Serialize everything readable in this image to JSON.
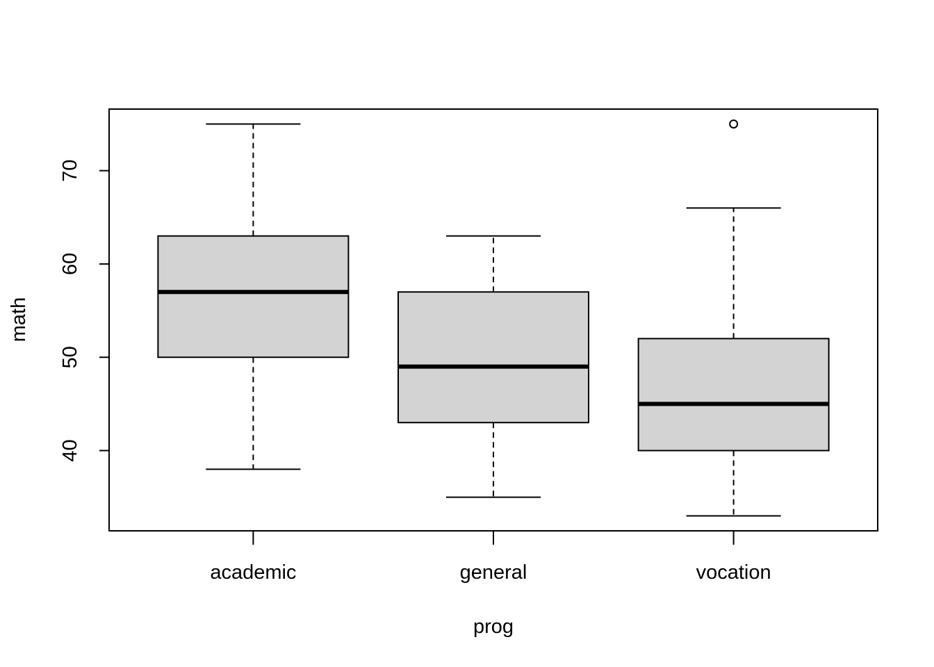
{
  "chart_data": {
    "type": "boxplot",
    "title": "",
    "xlabel": "prog",
    "ylabel": "math",
    "categories": [
      "academic",
      "general",
      "vocation"
    ],
    "boxes": [
      {
        "category": "academic",
        "whisker_low": 38,
        "q1": 50,
        "median": 57,
        "q3": 63,
        "whisker_high": 75,
        "outliers": []
      },
      {
        "category": "general",
        "whisker_low": 35,
        "q1": 43,
        "median": 49,
        "q3": 57,
        "whisker_high": 63,
        "outliers": []
      },
      {
        "category": "vocation",
        "whisker_low": 33,
        "q1": 40,
        "median": 45,
        "q3": 52,
        "whisker_high": 66,
        "outliers": [
          75
        ]
      }
    ],
    "ylim": [
      31.4,
      76.6
    ],
    "yticks": [
      40,
      50,
      60,
      70
    ],
    "ytick_labels": [
      "40",
      "50",
      "60",
      "70"
    ],
    "grid": false,
    "legend": "none",
    "colors": {
      "box_fill": "#d3d3d3",
      "stroke": "#000000",
      "background": "#ffffff"
    }
  }
}
